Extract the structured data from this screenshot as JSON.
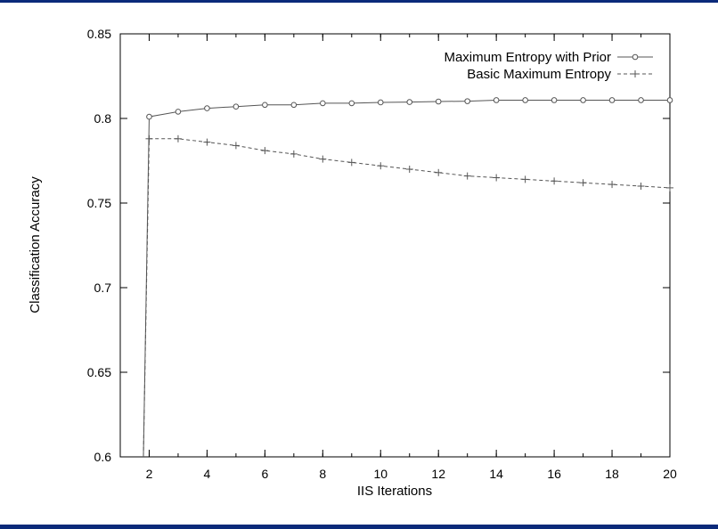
{
  "chart_data": {
    "type": "line",
    "xlabel": "IIS Iterations",
    "ylabel": "Classification Accuracy",
    "xlim": [
      1,
      20
    ],
    "ylim": [
      0.6,
      0.85
    ],
    "x_ticks": [
      2,
      4,
      6,
      8,
      10,
      12,
      14,
      16,
      18,
      20
    ],
    "y_ticks": [
      0.6,
      0.65,
      0.7,
      0.75,
      0.8,
      0.85
    ],
    "y_tick_labels": [
      "0.6",
      "0.65",
      "0.7",
      "0.75",
      "0.8",
      "0.85"
    ],
    "grid": false,
    "legend_position": "top-right",
    "series": [
      {
        "name": "Maximum Entropy with Prior",
        "style": "solid",
        "marker": "circle",
        "color": "#555555",
        "x": [
          1.8,
          2,
          3,
          4,
          5,
          6,
          7,
          8,
          9,
          10,
          11,
          12,
          13,
          14,
          15,
          16,
          17,
          18,
          19,
          20
        ],
        "y": [
          0.6,
          0.801,
          0.804,
          0.806,
          0.807,
          0.808,
          0.808,
          0.809,
          0.809,
          0.8095,
          0.8097,
          0.81,
          0.8102,
          0.8108,
          0.8108,
          0.8108,
          0.8108,
          0.8108,
          0.8108,
          0.8108
        ],
        "marked": [
          false,
          true,
          true,
          true,
          true,
          true,
          true,
          true,
          true,
          true,
          true,
          true,
          true,
          true,
          true,
          true,
          true,
          true,
          true,
          true
        ]
      },
      {
        "name": "Basic Maximum Entropy",
        "style": "dashed",
        "marker": "plus",
        "color": "#555555",
        "x": [
          1.8,
          2,
          3,
          4,
          5,
          6,
          7,
          8,
          9,
          10,
          11,
          12,
          13,
          14,
          15,
          16,
          17,
          18,
          19,
          20
        ],
        "y": [
          0.6,
          0.788,
          0.788,
          0.786,
          0.784,
          0.781,
          0.779,
          0.776,
          0.774,
          0.772,
          0.77,
          0.768,
          0.766,
          0.765,
          0.764,
          0.763,
          0.762,
          0.761,
          0.76,
          0.759
        ],
        "marked": [
          false,
          true,
          true,
          true,
          true,
          true,
          true,
          true,
          true,
          true,
          true,
          true,
          true,
          true,
          true,
          true,
          true,
          true,
          true,
          true
        ]
      }
    ]
  }
}
